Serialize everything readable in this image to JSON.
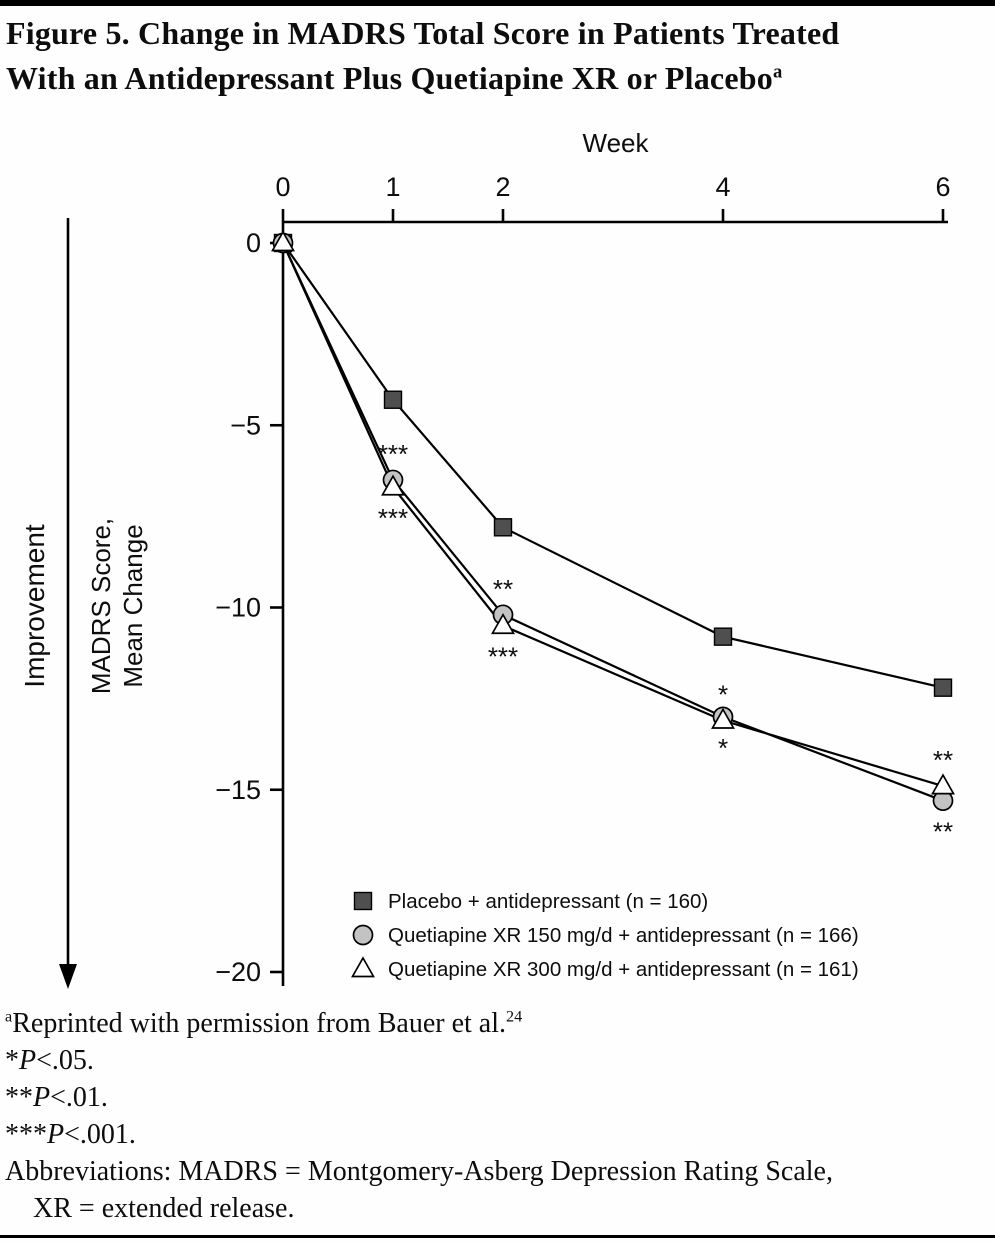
{
  "title": {
    "line1": "Figure 5. Change in MADRS Total Score in Patients Treated",
    "line2": "With an Antidepressant Plus Quetiapine XR or Placebo",
    "superscript": "a"
  },
  "chart_data": {
    "type": "line",
    "xlabel": "Week",
    "ylabel_lines": [
      "MADRS Score,",
      "Mean Change"
    ],
    "improvement_label": "Improvement",
    "x": [
      0,
      1,
      2,
      4,
      6
    ],
    "x_tick_labels": [
      "0",
      "1",
      "2",
      "4",
      "6"
    ],
    "xlim": [
      0,
      6
    ],
    "y_ticks": [
      0,
      -5,
      -10,
      -15,
      -20
    ],
    "y_tick_labels": [
      "0",
      "−5",
      "−10",
      "−15",
      "−20"
    ],
    "ylim": [
      -20,
      0
    ],
    "grid": false,
    "legend_position": "inside-bottom",
    "series": [
      {
        "name": "Placebo + antidepressant (n = 160)",
        "marker": "square",
        "marker_fill": "#4f4f4f",
        "line_color": "#000000",
        "values": [
          0,
          -4.3,
          -7.8,
          -10.8,
          -12.2
        ]
      },
      {
        "name": "Quetiapine XR 150 mg/d + antidepressant (n = 166)",
        "marker": "circle",
        "marker_fill": "#c3c3c3",
        "line_color": "#000000",
        "values": [
          0,
          -6.5,
          -10.2,
          -13.0,
          -15.3
        ]
      },
      {
        "name": "Quetiapine XR 300 mg/d + antidepressant (n = 161)",
        "marker": "triangle",
        "marker_fill": "#ffffff",
        "line_color": "#000000",
        "values": [
          0,
          -6.7,
          -10.5,
          -13.1,
          -14.9
        ]
      }
    ],
    "annotations": [
      {
        "week": 1,
        "series": 1,
        "placement": "above",
        "text": "***"
      },
      {
        "week": 1,
        "series": 2,
        "placement": "below",
        "text": "***"
      },
      {
        "week": 2,
        "series": 1,
        "placement": "above",
        "text": "**"
      },
      {
        "week": 2,
        "series": 2,
        "placement": "below",
        "text": "***"
      },
      {
        "week": 4,
        "series": 2,
        "placement": "above",
        "text": "*"
      },
      {
        "week": 4,
        "series": 1,
        "placement": "below",
        "text": "*"
      },
      {
        "week": 6,
        "series": 2,
        "placement": "above",
        "text": "**"
      },
      {
        "week": 6,
        "series": 1,
        "placement": "below",
        "text": "**"
      }
    ]
  },
  "footnotes": [
    {
      "indent": false,
      "segments": [
        {
          "style": "sup",
          "text": "a"
        },
        {
          "style": "normal",
          "text": "Reprinted with permission from Bauer et al."
        },
        {
          "style": "sup",
          "text": "24"
        }
      ]
    },
    {
      "indent": false,
      "segments": [
        {
          "style": "normal",
          "text": "*"
        },
        {
          "style": "italic",
          "text": "P"
        },
        {
          "style": "normal",
          "text": "<.05."
        }
      ]
    },
    {
      "indent": false,
      "segments": [
        {
          "style": "normal",
          "text": "**"
        },
        {
          "style": "italic",
          "text": "P"
        },
        {
          "style": "normal",
          "text": "<.01."
        }
      ]
    },
    {
      "indent": false,
      "segments": [
        {
          "style": "normal",
          "text": "***"
        },
        {
          "style": "italic",
          "text": "P"
        },
        {
          "style": "normal",
          "text": "<.001."
        }
      ]
    },
    {
      "indent": false,
      "segments": [
        {
          "style": "normal",
          "text": "Abbreviations: MADRS = Montgomery-Asberg Depression Rating Scale,"
        }
      ]
    },
    {
      "indent": true,
      "segments": [
        {
          "style": "normal",
          "text": "XR = extended release."
        }
      ]
    }
  ]
}
